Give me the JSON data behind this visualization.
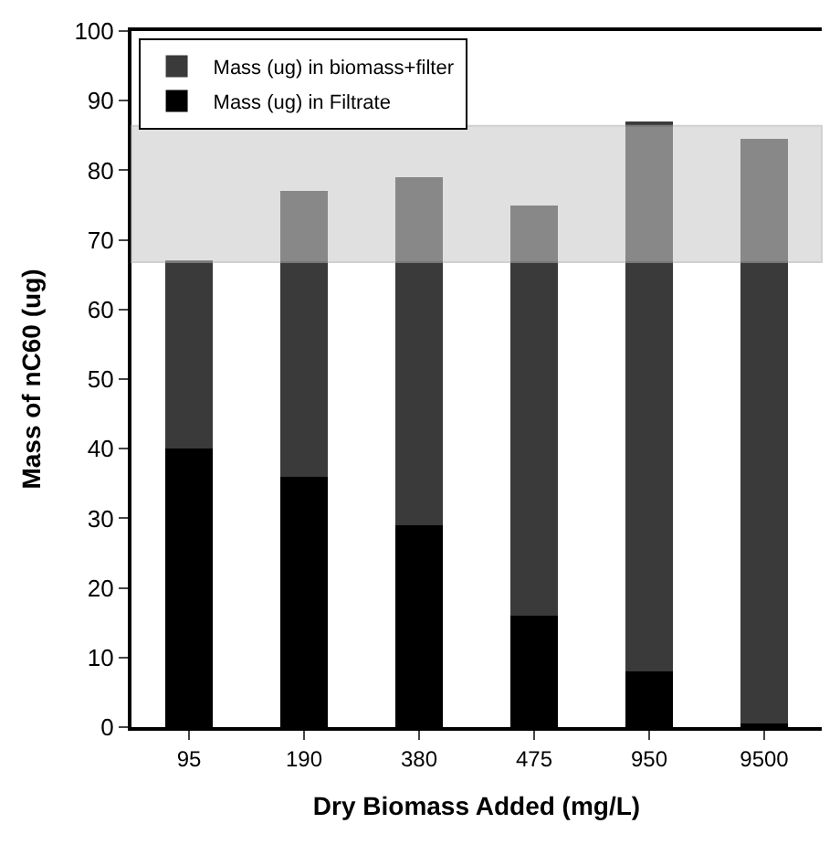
{
  "chart_data": {
    "type": "bar",
    "stacked": true,
    "xlabel": "Dry Biomass Added (mg/L)",
    "ylabel": "Mass of nC60 (ug)",
    "categories": [
      "95",
      "190",
      "380",
      "475",
      "950",
      "9500"
    ],
    "series": [
      {
        "name": "Mass (ug) in Filtrate",
        "color": "#000000",
        "values": [
          40,
          36,
          29,
          16,
          8,
          0.5
        ]
      },
      {
        "name": "Mass (ug) in biomass+filter",
        "color": "#3a3a3a",
        "values": [
          27,
          41,
          50,
          59,
          79,
          84
        ]
      }
    ],
    "ylim": [
      0,
      100
    ],
    "yticks": [
      0,
      10,
      20,
      30,
      40,
      50,
      60,
      70,
      80,
      90,
      100
    ],
    "bands": [
      {
        "axis": "y",
        "from": 66.8,
        "to": 86.4,
        "color": "#c8c8c8"
      }
    ],
    "legend": "top left"
  }
}
